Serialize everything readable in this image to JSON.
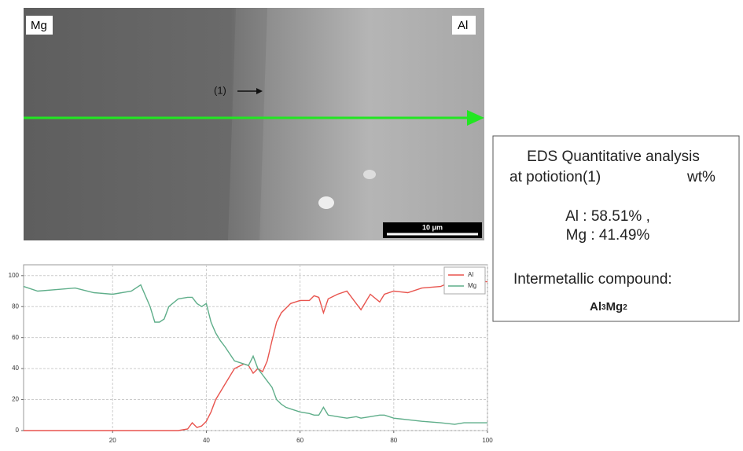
{
  "micrograph": {
    "left_label": "Mg",
    "right_label": "Al",
    "point_label": "(1)",
    "scale_bar": "10 μm"
  },
  "panel": {
    "title_line1": "EDS Quantitative analysis",
    "title_line2": "at potiotion(1)",
    "unit": "wt%",
    "result_al": "Al : 58.51% ,",
    "result_mg": "Mg : 41.49%",
    "compound_label": "Intermetallic compound:",
    "formula_parts": [
      "Al",
      "3",
      "Mg",
      "2"
    ]
  },
  "chart_data": {
    "type": "line",
    "x": [
      1,
      4,
      8,
      12,
      16,
      20,
      24,
      26,
      28,
      29,
      30,
      31,
      32,
      34,
      36,
      37,
      38,
      39,
      40,
      41,
      42,
      43,
      44,
      46,
      48,
      49,
      50,
      51,
      52,
      53,
      54,
      55,
      56,
      57,
      58,
      60,
      62,
      63,
      64,
      65,
      66,
      68,
      70,
      72,
      73,
      75,
      77,
      78,
      80,
      83,
      86,
      90,
      93,
      95,
      97,
      100
    ],
    "series": [
      {
        "name": "Al",
        "color": "#e8544e",
        "values": [
          0,
          0,
          0,
          0,
          0,
          0,
          0,
          0,
          0,
          0,
          0,
          0,
          0,
          0,
          1,
          5,
          2,
          3,
          6,
          12,
          20,
          25,
          30,
          40,
          43,
          42,
          37,
          40,
          38,
          45,
          58,
          70,
          76,
          79,
          82,
          84,
          84,
          87,
          86,
          76,
          85,
          88,
          90,
          82,
          78,
          88,
          83,
          88,
          90,
          89,
          92,
          93,
          97,
          94,
          97,
          96
        ]
      },
      {
        "name": "Mg",
        "color": "#5fae8a",
        "values": [
          93,
          90,
          91,
          92,
          89,
          88,
          90,
          94,
          80,
          70,
          70,
          72,
          80,
          85,
          86,
          86,
          82,
          80,
          82,
          70,
          63,
          58,
          54,
          45,
          43,
          42,
          48,
          40,
          36,
          32,
          28,
          20,
          17,
          15,
          14,
          12,
          11,
          10,
          10,
          15,
          10,
          9,
          8,
          9,
          8,
          9,
          10,
          10,
          8,
          7,
          6,
          5,
          4,
          5,
          5,
          5
        ]
      }
    ],
    "xlim": [
      1,
      100
    ],
    "ylim": [
      0,
      107
    ],
    "xticks": [
      20,
      40,
      60,
      80,
      100
    ],
    "yticks": [
      0,
      20,
      40,
      60,
      80,
      100
    ],
    "grid": true,
    "legend": "top-right"
  }
}
